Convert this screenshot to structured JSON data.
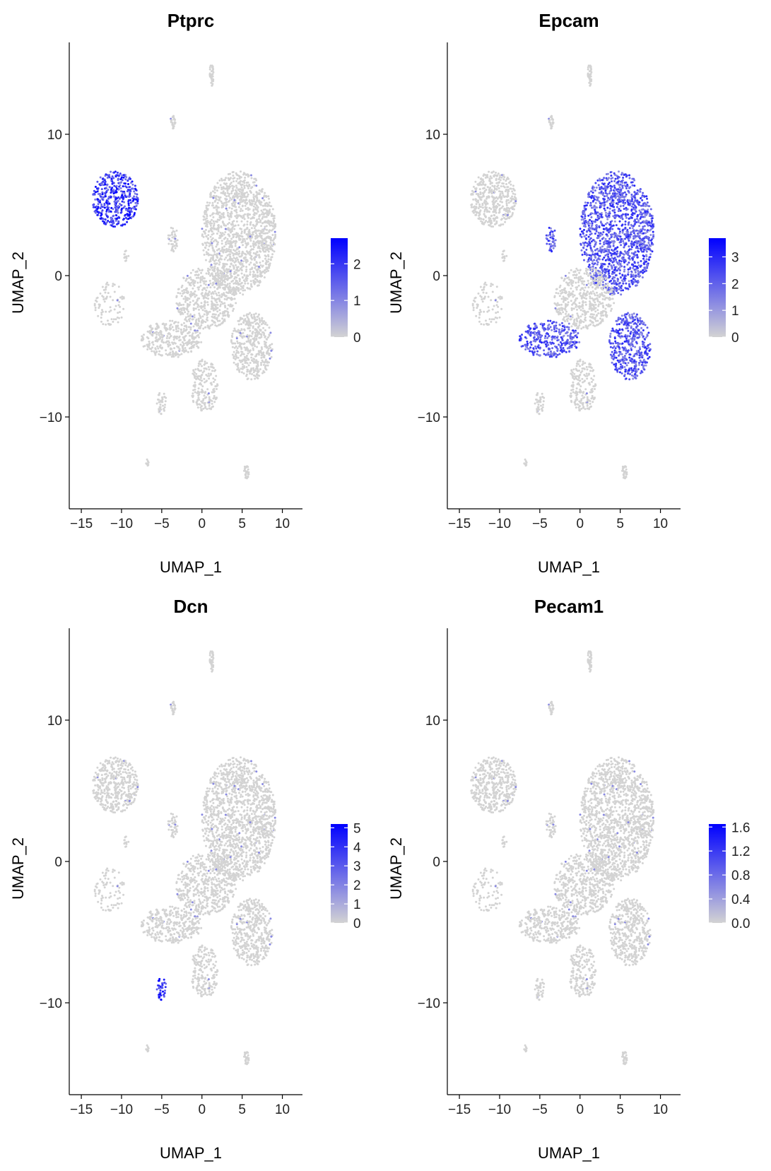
{
  "figure": {
    "background": "#ffffff",
    "low_color": "#d3d3d3",
    "high_color": "#0000ff"
  },
  "chart_data": [
    {
      "type": "scatter",
      "title": "Ptprc",
      "xlabel": "UMAP_1",
      "ylabel": "UMAP_2",
      "xlim": [
        -16.5,
        12.5
      ],
      "ylim": [
        -16.5,
        16.5
      ],
      "x_ticks": [
        -15,
        -10,
        -5,
        0,
        5,
        10
      ],
      "x_tick_labels": [
        "−15",
        "−10",
        "−5",
        "0",
        "5",
        "10"
      ],
      "y_ticks": [
        10,
        0,
        -10
      ],
      "y_tick_labels": [
        "10",
        "0",
        "−10"
      ],
      "legend": {
        "placement": "right",
        "max": 2.7,
        "ticks": [
          2,
          1,
          0
        ],
        "tick_labels": [
          "2",
          "1",
          "0"
        ]
      },
      "high_regions": [
        "left-island"
      ],
      "high_level": 0.75
    },
    {
      "type": "scatter",
      "title": "Epcam",
      "xlabel": "UMAP_1",
      "ylabel": "UMAP_2",
      "xlim": [
        -16.5,
        12.5
      ],
      "ylim": [
        -16.5,
        16.5
      ],
      "x_ticks": [
        -15,
        -10,
        -5,
        0,
        5,
        10
      ],
      "x_tick_labels": [
        "−15",
        "−10",
        "−5",
        "0",
        "5",
        "10"
      ],
      "y_ticks": [
        10,
        0,
        -10
      ],
      "y_tick_labels": [
        "10",
        "0",
        "−10"
      ],
      "legend": {
        "placement": "right",
        "max": 3.7,
        "ticks": [
          3,
          2,
          1,
          0
        ],
        "tick_labels": [
          "3",
          "2",
          "1",
          "0"
        ]
      },
      "high_regions": [
        "main-cluster",
        "lower-band",
        "bottom-right-island",
        "small-islands"
      ],
      "high_level": 0.6
    },
    {
      "type": "scatter",
      "title": "Dcn",
      "xlabel": "UMAP_1",
      "ylabel": "UMAP_2",
      "xlim": [
        -16.5,
        12.5
      ],
      "ylim": [
        -16.5,
        16.5
      ],
      "x_ticks": [
        -15,
        -10,
        -5,
        0,
        5,
        10
      ],
      "x_tick_labels": [
        "−15",
        "−10",
        "−5",
        "0",
        "5",
        "10"
      ],
      "y_ticks": [
        10,
        0,
        -10
      ],
      "y_tick_labels": [
        "10",
        "0",
        "−10"
      ],
      "legend": {
        "placement": "right",
        "max": 5.2,
        "ticks": [
          5,
          4,
          3,
          2,
          1,
          0
        ],
        "tick_labels": [
          "5",
          "4",
          "3",
          "2",
          "1",
          "0"
        ]
      },
      "high_regions": [
        "small-low-cluster"
      ],
      "high_level": 0.85
    },
    {
      "type": "scatter",
      "title": "Pecam1",
      "xlabel": "UMAP_1",
      "ylabel": "UMAP_2",
      "xlim": [
        -16.5,
        12.5
      ],
      "ylim": [
        -16.5,
        16.5
      ],
      "x_ticks": [
        -15,
        -10,
        -5,
        0,
        5,
        10
      ],
      "x_tick_labels": [
        "−15",
        "−10",
        "−5",
        "0",
        "5",
        "10"
      ],
      "y_ticks": [
        10,
        0,
        -10
      ],
      "y_tick_labels": [
        "10",
        "0",
        "−10"
      ],
      "legend": {
        "placement": "right",
        "max": 1.65,
        "ticks": [
          1.6,
          1.2,
          0.8,
          0.4,
          0.0
        ],
        "tick_labels": [
          "1.6",
          "1.2",
          "0.8",
          "0.4",
          "0.0"
        ]
      },
      "high_regions": [
        "left-island-sparse"
      ],
      "high_level": 0.5
    }
  ],
  "umap_regions": {
    "top-spike": {
      "cx": 1.2,
      "cy": 14.2,
      "rx": 0.25,
      "ry": 0.8,
      "n": 40
    },
    "small-upper": {
      "cx": -3.6,
      "cy": 10.9,
      "rx": 0.3,
      "ry": 0.5,
      "n": 25
    },
    "left-island": {
      "cx": -10.8,
      "cy": 5.4,
      "rx": 2.9,
      "ry": 2.0,
      "n": 420
    },
    "small-islands": {
      "cx": -3.6,
      "cy": 2.6,
      "rx": 0.6,
      "ry": 0.9,
      "n": 40
    },
    "tiny-left": {
      "cx": -9.4,
      "cy": 1.4,
      "rx": 0.3,
      "ry": 0.4,
      "n": 12
    },
    "left-arc": {
      "cx": -11.5,
      "cy": -2.0,
      "rx": 1.9,
      "ry": 1.6,
      "n": 80
    },
    "main-cluster": {
      "cx": 4.6,
      "cy": 3.0,
      "rx": 4.6,
      "ry": 4.4,
      "n": 1400
    },
    "diag-band": {
      "cx": 0.5,
      "cy": -1.6,
      "rx": 3.8,
      "ry": 2.2,
      "n": 500
    },
    "lower-band": {
      "cx": -3.8,
      "cy": -4.5,
      "rx": 3.8,
      "ry": 1.3,
      "n": 320
    },
    "bottom-right-island": {
      "cx": 6.2,
      "cy": -5.0,
      "rx": 2.6,
      "ry": 2.4,
      "n": 420
    },
    "lower-mid": {
      "cx": 0.3,
      "cy": -7.8,
      "rx": 1.7,
      "ry": 1.9,
      "n": 180
    },
    "small-low-cluster": {
      "cx": -5.0,
      "cy": -9.0,
      "rx": 0.6,
      "ry": 0.8,
      "n": 40
    },
    "bottom-left-dot": {
      "cx": -6.8,
      "cy": -13.2,
      "rx": 0.2,
      "ry": 0.25,
      "n": 8
    },
    "bottom-right-dot": {
      "cx": 5.5,
      "cy": -13.9,
      "rx": 0.35,
      "ry": 0.5,
      "n": 30
    }
  }
}
